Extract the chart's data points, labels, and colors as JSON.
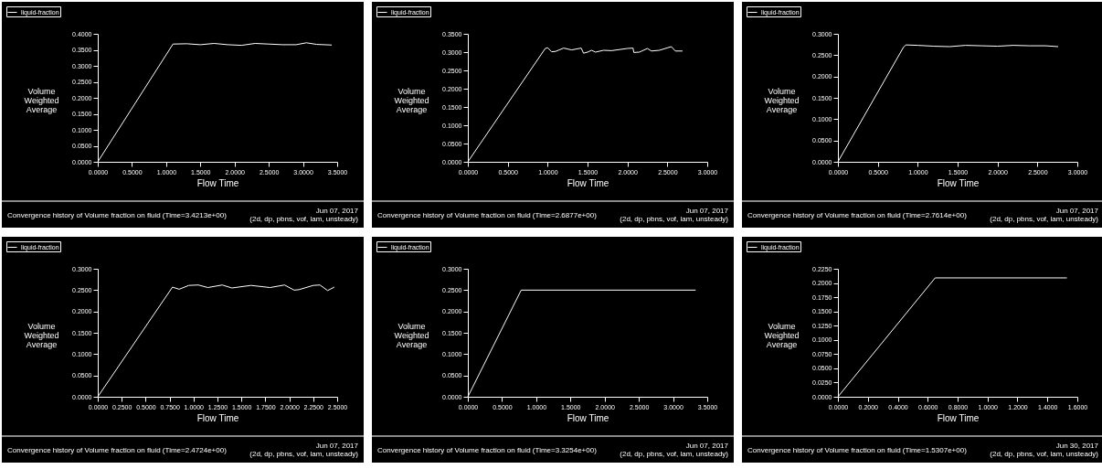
{
  "chart_data": [
    {
      "type": "line",
      "xlabel": "Flow Time",
      "ylabel": "Volume Weighted Average",
      "legend": "top left",
      "series": [
        {
          "name": "liquid-fraction",
          "color": "#ffffff",
          "x": [
            0,
            1.1,
            1.3,
            1.5,
            1.7,
            1.9,
            2.1,
            2.3,
            2.5,
            2.7,
            2.9,
            3.05,
            3.2,
            3.42
          ],
          "values": [
            0,
            0.368,
            0.369,
            0.366,
            0.37,
            0.366,
            0.364,
            0.37,
            0.368,
            0.366,
            0.366,
            0.372,
            0.367,
            0.365
          ]
        }
      ],
      "xlim": [
        0,
        3.5
      ],
      "ylim": [
        0,
        0.4
      ],
      "xticks": [
        {
          "value": 0,
          "label": "0.0000"
        },
        {
          "value": 0.5,
          "label": "0.5000"
        },
        {
          "value": 1,
          "label": "1.0000"
        },
        {
          "value": 1.5,
          "label": "1.5000"
        },
        {
          "value": 2,
          "label": "2.0000"
        },
        {
          "value": 2.5,
          "label": "2.5000"
        },
        {
          "value": 3,
          "label": "3.0000"
        },
        {
          "value": 3.5,
          "label": "3.5000"
        }
      ],
      "yticks": [
        {
          "value": 0,
          "label": "0.0000"
        },
        {
          "value": 0.05,
          "label": "0.0500"
        },
        {
          "value": 0.1,
          "label": "0.1000"
        },
        {
          "value": 0.15,
          "label": "0.1500"
        },
        {
          "value": 0.2,
          "label": "0.2000"
        },
        {
          "value": 0.25,
          "label": "0.2500"
        },
        {
          "value": 0.3,
          "label": "0.3000"
        },
        {
          "value": 0.35,
          "label": "0.3500"
        },
        {
          "value": 0.4,
          "label": "0.4000"
        }
      ],
      "annotations": [
        "Convergence history of Volume fraction on fluid  (Time=3.4213e+00)",
        "Jun 07, 2017",
        "(2d, dp, pbns, vof, lam, unsteady)"
      ]
    },
    {
      "type": "line",
      "xlabel": "Flow Time",
      "ylabel": "Volume Weighted Average",
      "legend": "top left",
      "series": [
        {
          "name": "liquid-fraction",
          "color": "#ffffff",
          "x": [
            0,
            0.97,
            1.0,
            1.05,
            1.1,
            1.2,
            1.3,
            1.42,
            1.45,
            1.5,
            1.55,
            1.6,
            1.7,
            1.8,
            2.0,
            2.07,
            2.08,
            2.15,
            2.25,
            2.3,
            2.4,
            2.55,
            2.6,
            2.69
          ],
          "values": [
            0,
            0.31,
            0.312,
            0.301,
            0.302,
            0.311,
            0.306,
            0.311,
            0.297,
            0.3,
            0.305,
            0.3,
            0.305,
            0.304,
            0.31,
            0.311,
            0.299,
            0.3,
            0.31,
            0.303,
            0.305,
            0.315,
            0.303,
            0.303
          ]
        }
      ],
      "xlim": [
        0,
        3
      ],
      "ylim": [
        0,
        0.35
      ],
      "xticks": [
        {
          "value": 0,
          "label": "0.0000"
        },
        {
          "value": 0.5,
          "label": "0.5000"
        },
        {
          "value": 1,
          "label": "1.0000"
        },
        {
          "value": 1.5,
          "label": "1.5000"
        },
        {
          "value": 2,
          "label": "2.0000"
        },
        {
          "value": 2.5,
          "label": "2.5000"
        },
        {
          "value": 3,
          "label": "3.0000"
        }
      ],
      "yticks": [
        {
          "value": 0,
          "label": "0.0000"
        },
        {
          "value": 0.05,
          "label": "0.0500"
        },
        {
          "value": 0.1,
          "label": "0.1000"
        },
        {
          "value": 0.15,
          "label": "0.1500"
        },
        {
          "value": 0.2,
          "label": "0.2000"
        },
        {
          "value": 0.25,
          "label": "0.2500"
        },
        {
          "value": 0.3,
          "label": "0.3000"
        },
        {
          "value": 0.35,
          "label": "0.3500"
        }
      ],
      "annotations": [
        "Convergence history of Volume fraction on fluid  (Time=2.6877e+00)",
        "Jun 07, 2017",
        "(2d, dp, pbns, vof, lam, unsteady)"
      ]
    },
    {
      "type": "line",
      "xlabel": "Flow Time",
      "ylabel": "Volume Weighted Average",
      "legend": "top left",
      "series": [
        {
          "name": "liquid-fraction",
          "color": "#ffffff",
          "x": [
            0,
            0.82,
            0.85,
            1.0,
            1.2,
            1.4,
            1.6,
            1.8,
            2.0,
            2.2,
            2.4,
            2.6,
            2.76
          ],
          "values": [
            0,
            0.268,
            0.274,
            0.273,
            0.271,
            0.27,
            0.273,
            0.272,
            0.271,
            0.273,
            0.272,
            0.272,
            0.27
          ]
        }
      ],
      "xlim": [
        0,
        3
      ],
      "ylim": [
        0,
        0.3
      ],
      "xticks": [
        {
          "value": 0,
          "label": "0.0000"
        },
        {
          "value": 0.5,
          "label": "0.5000"
        },
        {
          "value": 1,
          "label": "1.0000"
        },
        {
          "value": 1.5,
          "label": "1.5000"
        },
        {
          "value": 2,
          "label": "2.0000"
        },
        {
          "value": 2.5,
          "label": "2.5000"
        },
        {
          "value": 3,
          "label": "3.0000"
        }
      ],
      "yticks": [
        {
          "value": 0,
          "label": "0.0000"
        },
        {
          "value": 0.05,
          "label": "0.0500"
        },
        {
          "value": 0.1,
          "label": "0.1000"
        },
        {
          "value": 0.15,
          "label": "0.1500"
        },
        {
          "value": 0.2,
          "label": "0.2000"
        },
        {
          "value": 0.25,
          "label": "0.2500"
        },
        {
          "value": 0.3,
          "label": "0.3000"
        }
      ],
      "annotations": [
        "Convergence history of Volume fraction on fluid  (Time=2.7614e+00)",
        "Jun 07, 2017",
        "(2d, dp, pbns, vof, lam, unsteady)"
      ]
    },
    {
      "type": "line",
      "xlabel": "Flow Time",
      "ylabel": "Volume Weighted Average",
      "legend": "top left",
      "series": [
        {
          "name": "liquid-fraction",
          "color": "#ffffff",
          "x": [
            0,
            0.78,
            0.85,
            0.95,
            1.05,
            1.15,
            1.3,
            1.4,
            1.6,
            1.8,
            1.95,
            2.05,
            2.1,
            2.25,
            2.32,
            2.4,
            2.47
          ],
          "values": [
            0,
            0.257,
            0.252,
            0.261,
            0.262,
            0.256,
            0.262,
            0.255,
            0.261,
            0.256,
            0.262,
            0.25,
            0.251,
            0.261,
            0.262,
            0.249,
            0.257
          ]
        }
      ],
      "xlim": [
        0,
        2.5
      ],
      "ylim": [
        0,
        0.3
      ],
      "xticks": [
        {
          "value": 0,
          "label": "0.0000"
        },
        {
          "value": 0.25,
          "label": "0.2500"
        },
        {
          "value": 0.5,
          "label": "0.5000"
        },
        {
          "value": 0.75,
          "label": "0.7500"
        },
        {
          "value": 1,
          "label": "1.0000"
        },
        {
          "value": 1.25,
          "label": "1.2500"
        },
        {
          "value": 1.5,
          "label": "1.5000"
        },
        {
          "value": 1.75,
          "label": "1.7500"
        },
        {
          "value": 2,
          "label": "2.0000"
        },
        {
          "value": 2.25,
          "label": "2.2500"
        },
        {
          "value": 2.5,
          "label": "2.5000"
        }
      ],
      "yticks": [
        {
          "value": 0,
          "label": "0.0000"
        },
        {
          "value": 0.05,
          "label": "0.0500"
        },
        {
          "value": 0.1,
          "label": "0.1000"
        },
        {
          "value": 0.15,
          "label": "0.1500"
        },
        {
          "value": 0.2,
          "label": "0.2000"
        },
        {
          "value": 0.25,
          "label": "0.2500"
        },
        {
          "value": 0.3,
          "label": "0.3000"
        }
      ],
      "annotations": [
        "Convergence history of Volume fraction on fluid  (Time=2.4724e+00)",
        "Jun 07, 2017",
        "(2d, dp, pbns, vof, lam, unsteady)"
      ]
    },
    {
      "type": "line",
      "xlabel": "Flow Time",
      "ylabel": "Volume Weighted Average",
      "legend": "top left",
      "series": [
        {
          "name": "liquid-fraction",
          "color": "#ffffff",
          "x": [
            0,
            0.78,
            3.33
          ],
          "values": [
            0,
            0.25,
            0.25
          ]
        }
      ],
      "xlim": [
        0,
        3.5
      ],
      "ylim": [
        0,
        0.3
      ],
      "xticks": [
        {
          "value": 0,
          "label": "0.0000"
        },
        {
          "value": 0.5,
          "label": "0.5000"
        },
        {
          "value": 1,
          "label": "1.0000"
        },
        {
          "value": 1.5,
          "label": "1.5000"
        },
        {
          "value": 2,
          "label": "2.0000"
        },
        {
          "value": 2.5,
          "label": "2.5000"
        },
        {
          "value": 3,
          "label": "3.0000"
        },
        {
          "value": 3.5,
          "label": "3.5000"
        }
      ],
      "yticks": [
        {
          "value": 0,
          "label": "0.0000"
        },
        {
          "value": 0.05,
          "label": "0.0500"
        },
        {
          "value": 0.1,
          "label": "0.1000"
        },
        {
          "value": 0.15,
          "label": "0.1500"
        },
        {
          "value": 0.2,
          "label": "0.2000"
        },
        {
          "value": 0.25,
          "label": "0.2500"
        },
        {
          "value": 0.3,
          "label": "0.3000"
        }
      ],
      "annotations": [
        "Convergence history of Volume fraction on fluid  (Time=3.3254e+00)",
        "Jun 07, 2017",
        "(2d, dp, pbns, vof, lam, unsteady)"
      ]
    },
    {
      "type": "line",
      "xlabel": "Flow Time",
      "ylabel": "Volume Weighted Average",
      "legend": "top left",
      "series": [
        {
          "name": "liquid-fraction",
          "color": "#ffffff",
          "x": [
            0,
            0.65,
            1.53
          ],
          "values": [
            0,
            0.209,
            0.209
          ]
        }
      ],
      "xlim": [
        0,
        1.6
      ],
      "ylim": [
        0,
        0.225
      ],
      "xticks": [
        {
          "value": 0,
          "label": "0.0000"
        },
        {
          "value": 0.2,
          "label": "0.2000"
        },
        {
          "value": 0.4,
          "label": "0.4000"
        },
        {
          "value": 0.6,
          "label": "0.6000"
        },
        {
          "value": 0.8,
          "label": "0.8000"
        },
        {
          "value": 1,
          "label": "1.0000"
        },
        {
          "value": 1.2,
          "label": "1.2000"
        },
        {
          "value": 1.4,
          "label": "1.4000"
        },
        {
          "value": 1.6,
          "label": "1.6000"
        }
      ],
      "yticks": [
        {
          "value": 0,
          "label": "0.0000"
        },
        {
          "value": 0.025,
          "label": "0.0250"
        },
        {
          "value": 0.05,
          "label": "0.0500"
        },
        {
          "value": 0.075,
          "label": "0.0750"
        },
        {
          "value": 0.1,
          "label": "0.1000"
        },
        {
          "value": 0.125,
          "label": "0.1250"
        },
        {
          "value": 0.15,
          "label": "0.1500"
        },
        {
          "value": 0.175,
          "label": "0.1750"
        },
        {
          "value": 0.2,
          "label": "0.2000"
        },
        {
          "value": 0.225,
          "label": "0.2250"
        }
      ],
      "annotations": [
        "Convergence history of Volume fraction on fluid  (Time=1.5307e+00)",
        "Jun 30, 2017",
        "(2d, dp, pbns, vof, lam, unsteady)"
      ]
    }
  ]
}
